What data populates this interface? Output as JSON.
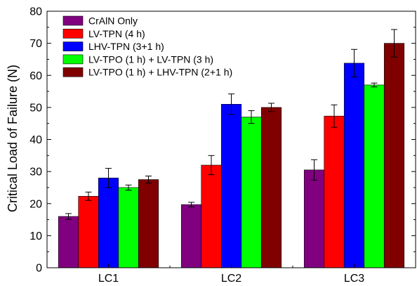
{
  "chart_data": {
    "type": "bar",
    "title": "",
    "xlabel": "",
    "ylabel": "Critical Load of Failure (N)",
    "ylim": [
      0,
      80
    ],
    "yticks": [
      0,
      10,
      20,
      30,
      40,
      50,
      60,
      70,
      80
    ],
    "grid": false,
    "legend_position": "top-left",
    "categories": [
      "LC1",
      "LC2",
      "LC3"
    ],
    "series": [
      {
        "name": "CrAlN Only",
        "color": "#800080",
        "values": [
          16.0,
          19.7,
          30.5
        ],
        "errors": [
          0.9,
          0.7,
          3.2
        ]
      },
      {
        "name": "LV-TPN  (4 h)",
        "color": "#ff0000",
        "values": [
          22.3,
          32.0,
          47.3
        ],
        "errors": [
          1.3,
          3.0,
          3.5
        ]
      },
      {
        "name": "LHV-TPN (3+1 h)",
        "color": "#0000ff",
        "values": [
          28.0,
          51.0,
          63.8
        ],
        "errors": [
          3.0,
          3.2,
          4.3
        ]
      },
      {
        "name": "LV-TPO (1 h) + LV-TPN (3 h)",
        "color": "#00ff00",
        "values": [
          25.0,
          47.0,
          57.0
        ],
        "errors": [
          0.8,
          2.0,
          0.6
        ]
      },
      {
        "name": "LV-TPO (1 h) + LHV-TPN (2+1 h)",
        "color": "#800000",
        "values": [
          27.5,
          50.0,
          70.0
        ],
        "errors": [
          1.1,
          1.3,
          4.3
        ]
      }
    ]
  }
}
